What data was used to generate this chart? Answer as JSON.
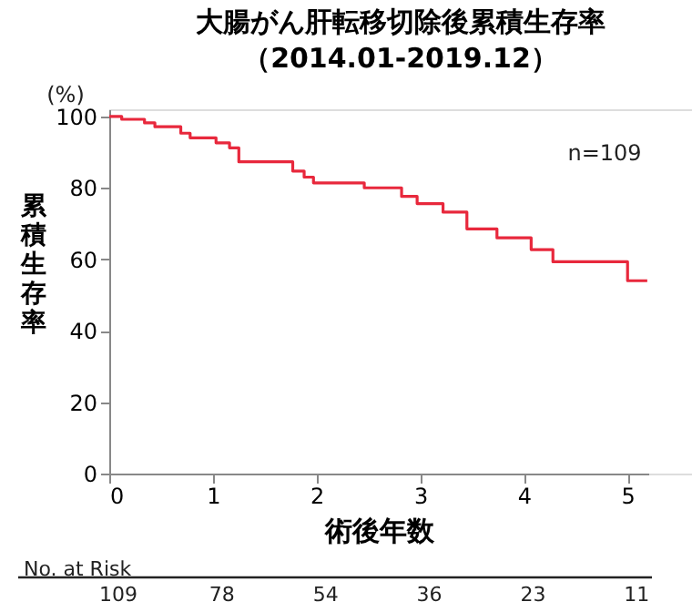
{
  "chart_data": {
    "type": "step",
    "title": [
      "大腸がん肝転移切除後累積生存率",
      "（2014.01-2019.12）"
    ],
    "xlabel": "術後年数",
    "ylabel": "累積生存率",
    "x": [
      0,
      0.12,
      0.34,
      0.44,
      0.69,
      0.78,
      1.03,
      1.16,
      1.25,
      1.77,
      1.88,
      1.97,
      2.46,
      2.82,
      2.97,
      3.22,
      3.45,
      3.74,
      4.07,
      4.28,
      5.0,
      5.19
    ],
    "series": [
      {
        "color": "#e8283c",
        "values": [
          100,
          99.2,
          98.2,
          97.1,
          95.3,
          94,
          92.6,
          91.2,
          87.3,
          84.7,
          83,
          81.4,
          80,
          77.6,
          75.6,
          73.2,
          68.5,
          66,
          62.7,
          59.3,
          54,
          54
        ]
      }
    ],
    "xlim": [
      0,
      5.2
    ],
    "xticks": [
      {
        "value": 0,
        "label": "0"
      },
      {
        "value": 1,
        "label": "1"
      },
      {
        "value": 2,
        "label": "2"
      },
      {
        "value": 3,
        "label": "3"
      },
      {
        "value": 4,
        "label": "4"
      },
      {
        "value": 5,
        "label": "5"
      }
    ],
    "ylim": [
      0,
      102
    ],
    "yticks": [
      0,
      20,
      40,
      60,
      80,
      100
    ],
    "grid": false,
    "marker": "none",
    "line_style": "solid",
    "annotations": [
      "(%)",
      "n=109",
      "No. at Risk",
      "109",
      "78",
      "54",
      "36",
      "23",
      "11"
    ]
  }
}
